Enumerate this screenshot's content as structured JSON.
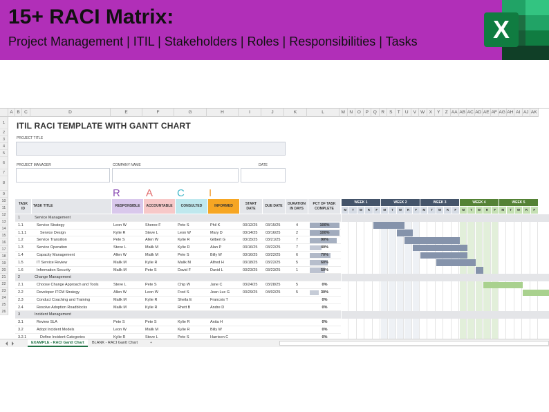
{
  "banner": {
    "title": "15+ RACI Matrix:",
    "subtitle": "Project Management | ITIL | Stakeholders | Roles | Responsibilities | Tasks",
    "bg_color": "#b12fb8",
    "logo_letter": "X"
  },
  "sheet": {
    "columns": [
      "A",
      "B",
      "C",
      "D",
      "E",
      "F",
      "G",
      "H",
      "I",
      "J",
      "K",
      "L",
      "M",
      "N",
      "O",
      "P",
      "Q",
      "R",
      "S",
      "T",
      "U",
      "V",
      "W",
      "X",
      "Y",
      "Z",
      "AA",
      "AB",
      "AC",
      "AD",
      "AE",
      "AF",
      "AG",
      "AH",
      "AI",
      "AJ",
      "AK"
    ],
    "title": "ITIL RACI TEMPLATE WITH GANTT CHART",
    "project_title_label": "PROJECT TITLE",
    "project_manager_label": "PROJECT MANAGER",
    "company_name_label": "COMPANY NAME",
    "date_label": "DATE",
    "raci_letters": [
      {
        "letter": "R",
        "color": "#8c4fb5"
      },
      {
        "letter": "A",
        "color": "#e26a6a"
      },
      {
        "letter": "C",
        "color": "#3fb7c9"
      },
      {
        "letter": "I",
        "color": "#f19a2a"
      }
    ],
    "headers": {
      "task_id": "TASK ID",
      "task_title": "TASK TITLE",
      "responsible": "RESPONSIBLE",
      "accountable": "ACCOUNTABLE",
      "consulted": "CONSULTED",
      "informed": "INFORMED",
      "start_date": "START DATE",
      "due_date": "DUE DATE",
      "duration": "DURATION IN DAYS",
      "pct_complete": "PCT OF TASK COMPLETE"
    },
    "header_colors": {
      "responsible": "#d9c8ec",
      "accountable": "#f7c8c8",
      "consulted": "#bfe8ee",
      "informed": "#f6a623"
    },
    "weeks": [
      {
        "label": "WEEK 1",
        "color": "#44546a"
      },
      {
        "label": "WEEK 2",
        "color": "#44546a"
      },
      {
        "label": "WEEK 3",
        "color": "#44546a"
      },
      {
        "label": "WEEK 4",
        "color": "#548235"
      },
      {
        "label": "WEEK 5",
        "color": "#548235"
      }
    ],
    "day_letters": [
      "M",
      "T",
      "W",
      "R",
      "F",
      "M",
      "T",
      "W",
      "R",
      "F",
      "M",
      "T",
      "W",
      "R",
      "F",
      "M",
      "T",
      "W",
      "R",
      "F",
      "M",
      "T",
      "W",
      "R",
      "F"
    ],
    "row_numbers": [
      "1",
      "2",
      "3",
      "4",
      "5",
      "6",
      "7",
      "8",
      "9",
      "10",
      "11",
      "12",
      "13",
      "14",
      "15",
      "16",
      "17",
      "18",
      "19",
      "20",
      "21",
      "22",
      "23",
      "24",
      "25",
      "26"
    ],
    "rows": [
      {
        "type": "section",
        "id": "1",
        "title": "Service Management"
      },
      {
        "type": "task",
        "id": "1.1",
        "title": "Service Strategy",
        "indent": 1,
        "r": "Leon W",
        "a": "Sheree F",
        "c": "Pete S",
        "i": "Phil K",
        "start": "03/12/25",
        "due": "03/15/25",
        "dur": "4",
        "pct": "100%",
        "pct_value": 1.0,
        "gantt_start": 9,
        "gantt_len": 4,
        "gantt_color": "#8593ab"
      },
      {
        "type": "task",
        "id": "1.1.1",
        "title": "Service Design",
        "indent": 2,
        "r": "Kylie R",
        "a": "Steve L",
        "c": "Leon W",
        "i": "Mary D",
        "start": "03/14/25",
        "due": "03/16/25",
        "dur": "2",
        "pct": "100%",
        "pct_value": 1.0,
        "gantt_start": 12,
        "gantt_len": 2,
        "gantt_color": "#8593ab"
      },
      {
        "type": "task",
        "id": "1.2",
        "title": "Service Transition",
        "indent": 1,
        "r": "Pete S",
        "a": "Allen W",
        "c": "Kylie R",
        "i": "Gilbert G",
        "start": "03/15/25",
        "due": "03/21/25",
        "dur": "7",
        "pct": "90%",
        "pct_value": 0.9,
        "gantt_start": 13,
        "gantt_len": 7,
        "gantt_color": "#8593ab"
      },
      {
        "type": "task",
        "id": "1.3",
        "title": "Service Operation",
        "indent": 1,
        "r": "Steve L",
        "a": "Malik M",
        "c": "Kylie R",
        "i": "Alan P",
        "start": "03/16/25",
        "due": "03/22/25",
        "dur": "7",
        "pct": "40%",
        "pct_value": 0.4,
        "gantt_start": 14,
        "gantt_len": 7,
        "gantt_color": "#8593ab"
      },
      {
        "type": "task",
        "id": "1.4",
        "title": "Capacity Management",
        "indent": 1,
        "r": "Allen W",
        "a": "Malik M",
        "c": "Pete S",
        "i": "Billy W",
        "start": "03/16/25",
        "due": "03/22/25",
        "dur": "6",
        "pct": "70%",
        "pct_value": 0.7,
        "gantt_start": 15,
        "gantt_len": 6,
        "gantt_color": "#8593ab"
      },
      {
        "type": "task",
        "id": "1.5",
        "title": "IT Service Review",
        "indent": 1,
        "r": "Malik M",
        "a": "Kylie R",
        "c": "Malik M",
        "i": "Alfred H",
        "start": "03/18/25",
        "due": "03/22/25",
        "dur": "5",
        "pct": "60%",
        "pct_value": 0.6,
        "gantt_start": 17,
        "gantt_len": 5,
        "gantt_color": "#8593ab"
      },
      {
        "type": "task",
        "id": "1.6",
        "title": "Information Security",
        "indent": 1,
        "r": "Malik M",
        "a": "Pete S",
        "c": "David F",
        "i": "David L",
        "start": "03/23/25",
        "due": "03/23/25",
        "dur": "1",
        "pct": "50%",
        "pct_value": 0.5,
        "gantt_start": 22,
        "gantt_len": 1,
        "gantt_color": "#8593ab"
      },
      {
        "type": "section",
        "id": "2",
        "title": "Change Management"
      },
      {
        "type": "task",
        "id": "2.1",
        "title": "Choose Change Approach and Tools",
        "indent": 1,
        "r": "Steve L",
        "a": "Pete S",
        "c": "Chip W",
        "i": "Jane C",
        "start": "03/24/25",
        "due": "03/28/25",
        "dur": "5",
        "pct": "0%",
        "pct_value": 0,
        "gantt_start": 23,
        "gantt_len": 5,
        "gantt_color": "#a9d18e"
      },
      {
        "type": "task",
        "id": "2.2",
        "title": "Developer ITCM Strategy",
        "indent": 1,
        "r": "Allen W",
        "a": "Leon W",
        "c": "Fred S",
        "i": "Jean Luc G",
        "start": "03/29/25",
        "due": "04/02/25",
        "dur": "5",
        "pct": "30%",
        "pct_value": 0.3,
        "gantt_start": 28,
        "gantt_len": 5,
        "gantt_color": "#a9d18e"
      },
      {
        "type": "task",
        "id": "2.3",
        "title": "Conduct Coaching and Training",
        "indent": 1,
        "r": "Malik M",
        "a": "Kylie R",
        "c": "Sheila E",
        "i": "Francois T",
        "start": "",
        "due": "",
        "dur": "",
        "pct": "0%",
        "pct_value": 0
      },
      {
        "type": "task",
        "id": "2.4",
        "title": "Resolve Adoption Roadblocks",
        "indent": 1,
        "r": "Malik M",
        "a": "Kylie R",
        "c": "Rhett B",
        "i": "Andre D",
        "start": "",
        "due": "",
        "dur": "",
        "pct": "0%",
        "pct_value": 0
      },
      {
        "type": "section",
        "id": "3",
        "title": "Incident Management"
      },
      {
        "type": "task",
        "id": "3.1",
        "title": "Review SLA",
        "indent": 1,
        "r": "Pete S",
        "a": "Pete S",
        "c": "Kylie R",
        "i": "Anita H",
        "start": "",
        "due": "",
        "dur": "",
        "pct": "0%",
        "pct_value": 0
      },
      {
        "type": "task",
        "id": "3.2",
        "title": "Adopt Incident Models",
        "indent": 1,
        "r": "Leon W",
        "a": "Malik M",
        "c": "Kylie R",
        "i": "Billy W",
        "start": "",
        "due": "",
        "dur": "",
        "pct": "0%",
        "pct_value": 0
      },
      {
        "type": "task",
        "id": "3.2.1",
        "title": "Define Incident Categories",
        "indent": 2,
        "r": "Kylie R",
        "a": "Steve L",
        "c": "Pete S",
        "i": "Harrison C",
        "start": "",
        "due": "",
        "dur": "",
        "pct": "0%",
        "pct_value": 0
      }
    ]
  },
  "tabs": [
    {
      "label": "EXAMPLE - RACI Gantt Chart",
      "active": true
    },
    {
      "label": "BLANK - RACI Gantt Chart",
      "active": false
    }
  ],
  "add_sheet_glyph": "+"
}
